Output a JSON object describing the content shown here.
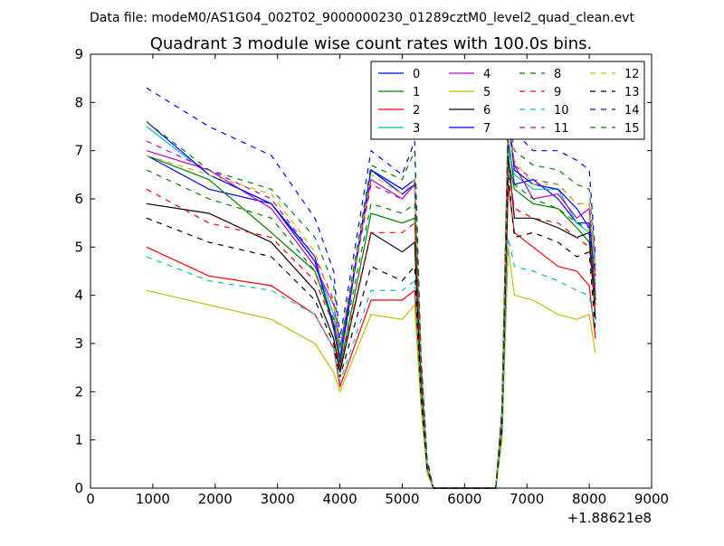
{
  "figure": {
    "suptitle": "Data file: modeM0/AS1G04_002T02_9000000230_01289cztM0_level2_quad_clean.evt"
  },
  "chart_data": {
    "type": "line",
    "title": "Quadrant 3 module wise count rates with 100.0s bins.",
    "xlabel": "",
    "ylabel": "",
    "x_offset_label": "+1.88621e8",
    "xlim": [
      0,
      9000
    ],
    "ylim": [
      0,
      9
    ],
    "xticks": [
      "0",
      "1000",
      "2000",
      "3000",
      "4000",
      "5000",
      "6000",
      "7000",
      "8000",
      "9000"
    ],
    "yticks": [
      "0",
      "1",
      "2",
      "3",
      "4",
      "5",
      "6",
      "7",
      "8",
      "9"
    ],
    "grid": false,
    "legend_position": "top-right",
    "legend_columns": 4,
    "x": [
      900,
      1900,
      2900,
      3600,
      3900,
      4000,
      4500,
      5000,
      5200,
      5300,
      5400,
      5500,
      5600,
      6500,
      6600,
      6700,
      6800,
      7100,
      7500,
      7800,
      8000,
      8100
    ],
    "series": [
      {
        "name": "0",
        "color": "#0000ff",
        "dash": "solid",
        "values": [
          6.9,
          6.2,
          5.9,
          4.8,
          3.3,
          2.6,
          6.6,
          6.1,
          6.3,
          2.6,
          0.5,
          0,
          0,
          0,
          1.5,
          7.2,
          6.3,
          6.4,
          6.0,
          5.5,
          5.5,
          3.9
        ]
      },
      {
        "name": "1",
        "color": "#008000",
        "dash": "solid",
        "values": [
          6.9,
          6.4,
          5.3,
          4.5,
          3.4,
          2.5,
          5.7,
          5.5,
          5.6,
          2.3,
          0.5,
          0,
          0,
          0,
          1.4,
          6.8,
          6.2,
          5.9,
          5.8,
          5.4,
          5.1,
          3.8
        ]
      },
      {
        "name": "2",
        "color": "#ff0000",
        "dash": "solid",
        "values": [
          5.0,
          4.4,
          4.2,
          3.6,
          2.9,
          2.1,
          3.9,
          3.9,
          4.1,
          2.0,
          0.4,
          0,
          0,
          0,
          1.2,
          6.3,
          5.3,
          5.0,
          4.6,
          4.5,
          4.2,
          3.1
        ]
      },
      {
        "name": "3",
        "color": "#00bfbf",
        "dash": "solid",
        "values": [
          7.5,
          6.5,
          5.9,
          4.7,
          3.6,
          2.7,
          6.6,
          6.2,
          6.4,
          2.6,
          0.5,
          0,
          0,
          0,
          1.5,
          7.0,
          6.5,
          6.2,
          6.2,
          5.5,
          5.3,
          4.2
        ]
      },
      {
        "name": "4",
        "color": "#bf00bf",
        "dash": "solid",
        "values": [
          7.0,
          6.6,
          5.8,
          4.6,
          3.8,
          2.9,
          6.4,
          6.0,
          6.3,
          2.6,
          0.5,
          0,
          0,
          0,
          1.6,
          7.7,
          6.7,
          6.0,
          6.1,
          5.6,
          5.8,
          4.0
        ]
      },
      {
        "name": "5",
        "color": "#bfbf00",
        "dash": "solid",
        "values": [
          4.1,
          3.8,
          3.5,
          3.0,
          2.4,
          2.0,
          3.6,
          3.5,
          3.8,
          1.7,
          0.3,
          0,
          0,
          0,
          1.0,
          5.0,
          4.0,
          3.9,
          3.6,
          3.5,
          3.6,
          2.8
        ]
      },
      {
        "name": "6",
        "color": "#000000",
        "dash": "solid",
        "values": [
          5.9,
          5.7,
          5.1,
          4.1,
          3.1,
          2.4,
          5.3,
          4.9,
          5.1,
          2.1,
          0.4,
          0,
          0,
          0,
          1.3,
          6.9,
          5.6,
          5.6,
          5.4,
          5.2,
          5.3,
          3.5
        ]
      },
      {
        "name": "7",
        "color": "#0000ff",
        "dash": "solid",
        "values": [
          7.6,
          6.5,
          5.9,
          4.7,
          3.4,
          2.7,
          6.6,
          6.2,
          6.4,
          2.7,
          0.5,
          0,
          0,
          0,
          1.5,
          7.6,
          6.6,
          6.3,
          6.2,
          5.8,
          5.4,
          4.4
        ]
      },
      {
        "name": "8",
        "color": "#008000",
        "dash": "dashed",
        "values": [
          6.6,
          6.0,
          5.6,
          4.5,
          3.5,
          2.7,
          5.9,
          5.7,
          5.9,
          2.5,
          0.5,
          0,
          0,
          0,
          1.5,
          7.2,
          6.3,
          6.0,
          5.8,
          5.5,
          5.4,
          3.9
        ]
      },
      {
        "name": "9",
        "color": "#ff0000",
        "dash": "dashed",
        "values": [
          6.2,
          5.5,
          5.2,
          4.3,
          3.4,
          2.5,
          5.3,
          5.3,
          5.5,
          2.3,
          0.4,
          0,
          0,
          0,
          1.4,
          6.6,
          5.8,
          5.6,
          5.5,
          5.2,
          5.0,
          3.6
        ]
      },
      {
        "name": "10",
        "color": "#00bfbf",
        "dash": "dashed",
        "values": [
          4.8,
          4.3,
          4.1,
          3.6,
          2.9,
          2.2,
          4.1,
          4.1,
          4.3,
          2.0,
          0.4,
          0,
          0,
          0,
          1.2,
          5.2,
          4.6,
          4.5,
          4.3,
          4.1,
          4.0,
          3.3
        ]
      },
      {
        "name": "11",
        "color": "#bf00bf",
        "dash": "dashed",
        "values": [
          7.2,
          6.6,
          6.0,
          4.8,
          3.9,
          2.9,
          6.3,
          6.0,
          6.3,
          2.6,
          0.5,
          0,
          0,
          0,
          1.6,
          7.8,
          6.7,
          6.4,
          6.3,
          5.9,
          5.9,
          4.5
        ]
      },
      {
        "name": "12",
        "color": "#bfbf00",
        "dash": "dashed",
        "values": [
          6.9,
          6.5,
          6.1,
          4.9,
          3.8,
          2.9,
          6.5,
          6.1,
          6.4,
          2.7,
          0.5,
          0,
          0,
          0,
          1.6,
          7.4,
          6.8,
          6.3,
          6.3,
          5.9,
          5.9,
          4.3
        ]
      },
      {
        "name": "13",
        "color": "#000000",
        "dash": "dashed",
        "values": [
          5.6,
          5.1,
          4.8,
          3.9,
          3.0,
          2.3,
          4.6,
          4.3,
          4.6,
          1.9,
          0.4,
          0,
          0,
          0,
          1.2,
          6.5,
          5.2,
          5.3,
          5.1,
          4.8,
          4.9,
          3.2
        ]
      },
      {
        "name": "14",
        "color": "#0000ff",
        "dash": "dashed",
        "values": [
          8.3,
          7.5,
          6.9,
          5.6,
          4.5,
          3.1,
          7.0,
          6.5,
          7.2,
          2.8,
          0.6,
          0,
          0,
          0,
          1.7,
          7.6,
          7.4,
          7.0,
          7.0,
          6.8,
          6.6,
          4.8
        ]
      },
      {
        "name": "15",
        "color": "#008000",
        "dash": "dashed",
        "values": [
          7.6,
          6.6,
          6.2,
          5.2,
          4.2,
          2.9,
          6.7,
          6.4,
          7.0,
          2.7,
          0.5,
          0,
          0,
          0,
          1.6,
          7.8,
          7.0,
          6.7,
          6.6,
          6.3,
          6.2,
          4.6
        ]
      }
    ]
  }
}
